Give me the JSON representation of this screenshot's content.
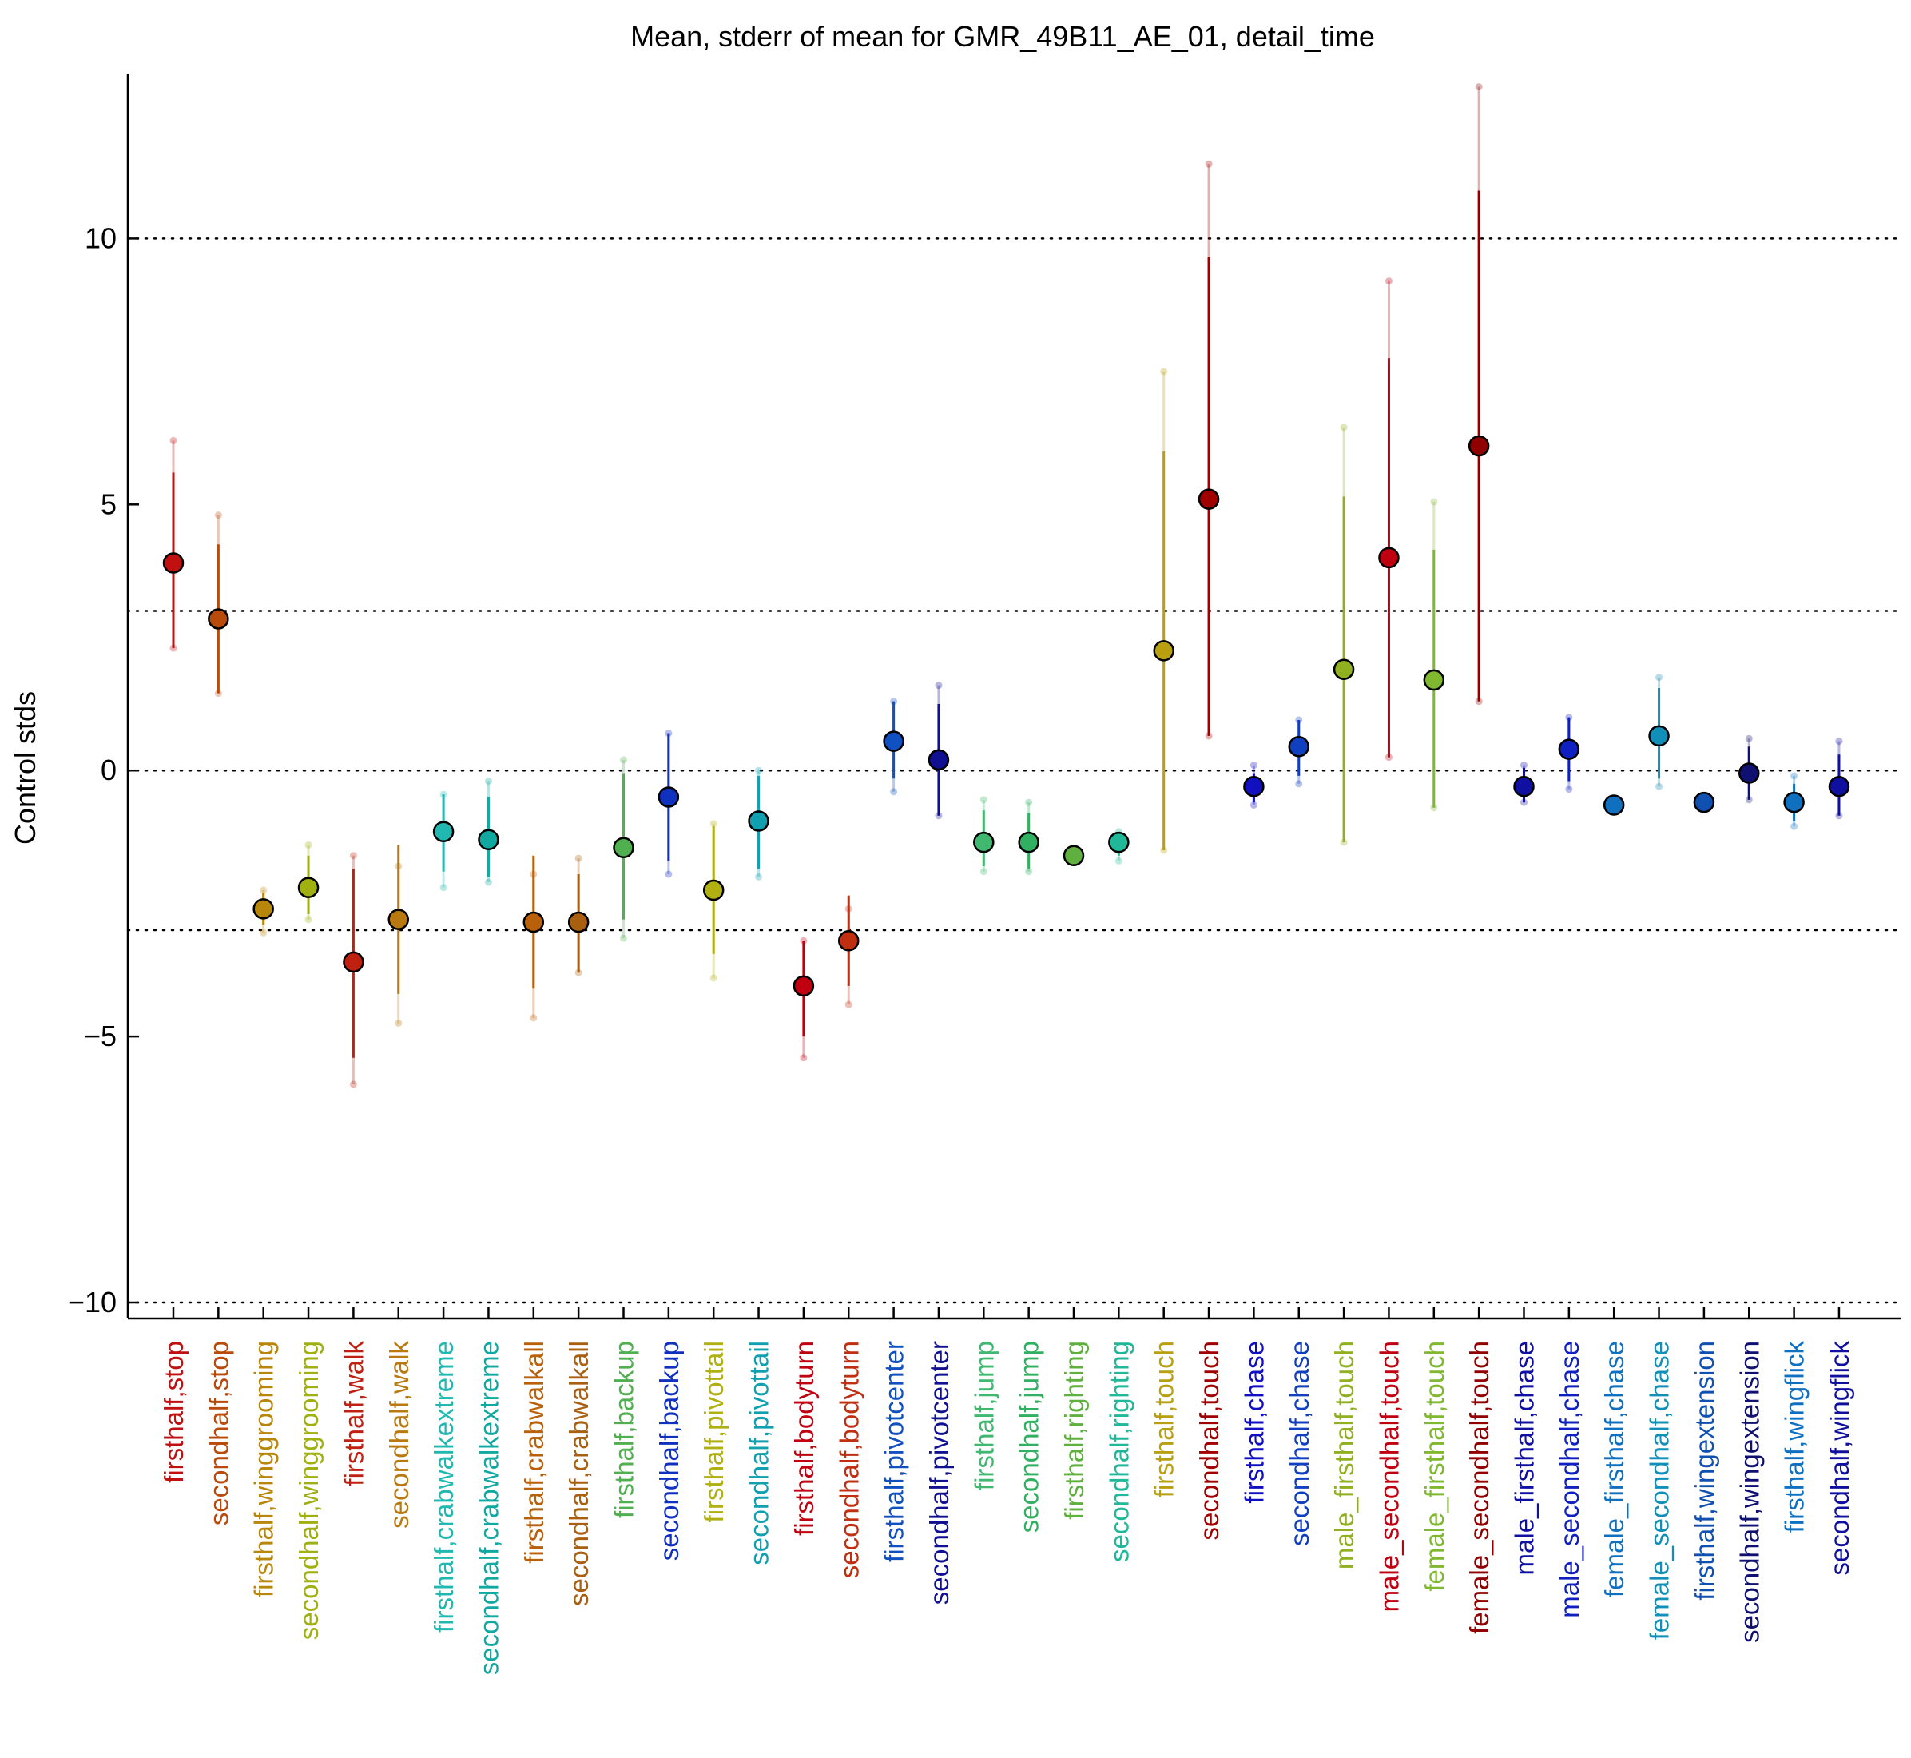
{
  "chart_data": {
    "type": "errorbar-scatter",
    "title": "Mean, stderr of mean for GMR_49B11_AE_01, detail_time",
    "ylabel": "Control stds",
    "xlabel": "",
    "ylim": [
      -10.3,
      13.1
    ],
    "yticks": [
      -10,
      -5,
      0,
      5,
      10
    ],
    "reference_lines": [
      -10,
      -3,
      0,
      3,
      10
    ],
    "grid": false,
    "categories": [
      {
        "label": "firsthalf,stop",
        "mean": 3.9,
        "se_low": 2.3,
        "se_high": 5.6,
        "low": 2.3,
        "high": 6.2,
        "color": "#c01010"
      },
      {
        "label": "secondhalf,stop",
        "mean": 2.85,
        "se_low": 1.45,
        "se_high": 4.25,
        "low": 1.45,
        "high": 4.8,
        "color": "#b84a0a"
      },
      {
        "label": "firsthalf,winggrooming",
        "mean": -2.6,
        "se_low": -2.9,
        "se_high": -2.3,
        "low": -3.05,
        "high": -2.25,
        "color": "#b8860b"
      },
      {
        "label": "secondhalf,winggrooming",
        "mean": -2.2,
        "se_low": -2.7,
        "se_high": -1.6,
        "low": -2.8,
        "high": -1.4,
        "color": "#a0b010"
      },
      {
        "label": "firsthalf,walk",
        "mean": -3.6,
        "se_low": -5.4,
        "se_high": -1.85,
        "low": -5.9,
        "high": -1.6,
        "color": "#c02010"
      },
      {
        "label": "secondhalf,walk",
        "mean": -2.8,
        "se_low": -4.2,
        "se_high": -1.4,
        "low": -4.75,
        "high": -1.8,
        "color": "#b87a10"
      },
      {
        "label": "firsthalf,crabwalkextreme",
        "mean": -1.15,
        "se_low": -1.9,
        "se_high": -0.45,
        "low": -2.2,
        "high": -0.45,
        "color": "#20b8b0"
      },
      {
        "label": "secondhalf,crabwalkextreme",
        "mean": -1.3,
        "se_low": -2.0,
        "se_high": -0.5,
        "low": -2.1,
        "high": -0.2,
        "color": "#10a8a0"
      },
      {
        "label": "firsthalf,crabwalkall",
        "mean": -2.85,
        "se_low": -4.1,
        "se_high": -1.6,
        "low": -4.65,
        "high": -1.95,
        "color": "#b8600a"
      },
      {
        "label": "secondhalf,crabwalkall",
        "mean": -2.85,
        "se_low": -3.8,
        "se_high": -1.95,
        "low": -3.8,
        "high": -1.65,
        "color": "#a86010"
      },
      {
        "label": "firsthalf,backup",
        "mean": -1.45,
        "se_low": -2.8,
        "se_high": -0.05,
        "low": -3.15,
        "high": 0.2,
        "color": "#50b050"
      },
      {
        "label": "secondhalf,backup",
        "mean": -0.5,
        "se_low": -1.7,
        "se_high": 0.7,
        "low": -1.95,
        "high": 0.7,
        "color": "#1030c0"
      },
      {
        "label": "firsthalf,pivottail",
        "mean": -2.25,
        "se_low": -3.45,
        "se_high": -1.05,
        "low": -3.9,
        "high": -1.0,
        "color": "#b0b010"
      },
      {
        "label": "secondhalf,pivottail",
        "mean": -0.95,
        "se_low": -1.85,
        "se_high": -0.1,
        "low": -2.0,
        "high": 0.0,
        "color": "#10a0b0"
      },
      {
        "label": "firsthalf,bodyturn",
        "mean": -4.05,
        "se_low": -5.0,
        "se_high": -3.2,
        "low": -5.4,
        "high": -3.2,
        "color": "#c00010"
      },
      {
        "label": "secondhalf,bodyturn",
        "mean": -3.2,
        "se_low": -4.05,
        "se_high": -2.35,
        "low": -4.4,
        "high": -2.6,
        "color": "#c03010"
      },
      {
        "label": "firsthalf,pivotcenter",
        "mean": 0.55,
        "se_low": -0.15,
        "se_high": 1.3,
        "low": -0.4,
        "high": 1.3,
        "color": "#1050c0"
      },
      {
        "label": "secondhalf,pivotcenter",
        "mean": 0.2,
        "se_low": -0.85,
        "se_high": 1.25,
        "low": -0.85,
        "high": 1.6,
        "color": "#101090"
      },
      {
        "label": "firsthalf,jump",
        "mean": -1.35,
        "se_low": -1.8,
        "se_high": -0.75,
        "low": -1.9,
        "high": -0.55,
        "color": "#40b870"
      },
      {
        "label": "secondhalf,jump",
        "mean": -1.35,
        "se_low": -1.85,
        "se_high": -0.8,
        "low": -1.9,
        "high": -0.6,
        "color": "#30b060"
      },
      {
        "label": "firsthalf,righting",
        "mean": -1.6,
        "se_low": -1.7,
        "se_high": -1.55,
        "low": -1.7,
        "high": -1.55,
        "color": "#60b040"
      },
      {
        "label": "secondhalf,righting",
        "mean": -1.35,
        "se_low": -1.6,
        "se_high": -1.15,
        "low": -1.7,
        "high": -1.15,
        "color": "#20b898"
      },
      {
        "label": "firsthalf,touch",
        "mean": 2.25,
        "se_low": -1.5,
        "se_high": 6.0,
        "low": -1.5,
        "high": 7.5,
        "color": "#b8a010"
      },
      {
        "label": "secondhalf,touch",
        "mean": 5.1,
        "se_low": 0.65,
        "se_high": 9.65,
        "low": 0.65,
        "high": 11.4,
        "color": "#a00000"
      },
      {
        "label": "firsthalf,chase",
        "mean": -0.3,
        "se_low": -0.6,
        "se_high": -0.05,
        "low": -0.65,
        "high": 0.1,
        "color": "#1010c0"
      },
      {
        "label": "secondhalf,chase",
        "mean": 0.45,
        "se_low": -0.1,
        "se_high": 0.95,
        "low": -0.25,
        "high": 0.95,
        "color": "#1040c0"
      },
      {
        "label": "male_firsthalf,touch",
        "mean": 1.9,
        "se_low": -1.35,
        "se_high": 5.15,
        "low": -1.35,
        "high": 6.45,
        "color": "#90b020"
      },
      {
        "label": "male_secondhalf,touch",
        "mean": 4.0,
        "se_low": 0.25,
        "se_high": 7.75,
        "low": 0.25,
        "high": 9.2,
        "color": "#c00010"
      },
      {
        "label": "female_firsthalf,touch",
        "mean": 1.7,
        "se_low": -0.7,
        "se_high": 4.15,
        "low": -0.7,
        "high": 5.05,
        "color": "#80b830"
      },
      {
        "label": "female_secondhalf,touch",
        "mean": 6.1,
        "se_low": 1.3,
        "se_high": 10.9,
        "low": 1.3,
        "high": 12.85,
        "color": "#900000"
      },
      {
        "label": "male_firsthalf,chase",
        "mean": -0.3,
        "se_low": -0.6,
        "se_high": 0.05,
        "low": -0.6,
        "high": 0.1,
        "color": "#1010a0"
      },
      {
        "label": "male_secondhalf,chase",
        "mean": 0.4,
        "se_low": -0.2,
        "se_high": 1.0,
        "low": -0.35,
        "high": 1.0,
        "color": "#1020c0"
      },
      {
        "label": "female_firsthalf,chase",
        "mean": -0.65,
        "se_low": -0.7,
        "se_high": -0.6,
        "low": -0.7,
        "high": -0.6,
        "color": "#1070c0"
      },
      {
        "label": "female_secondhalf,chase",
        "mean": 0.65,
        "se_low": -0.15,
        "se_high": 1.55,
        "low": -0.3,
        "high": 1.75,
        "color": "#1090b8"
      },
      {
        "label": "firsthalf,wingextension",
        "mean": -0.6,
        "se_low": -0.65,
        "se_high": -0.55,
        "low": -0.65,
        "high": -0.55,
        "color": "#1050b0"
      },
      {
        "label": "secondhalf,wingextension",
        "mean": -0.05,
        "se_low": -0.55,
        "se_high": 0.45,
        "low": -0.55,
        "high": 0.6,
        "color": "#101070"
      },
      {
        "label": "firsthalf,wingflick",
        "mean": -0.6,
        "se_low": -0.95,
        "se_high": -0.25,
        "low": -1.05,
        "high": -0.1,
        "color": "#1070c0"
      },
      {
        "label": "secondhalf,wingflick",
        "mean": -0.3,
        "se_low": -0.85,
        "se_high": 0.3,
        "low": -0.85,
        "high": 0.55,
        "color": "#1010a0"
      }
    ]
  }
}
